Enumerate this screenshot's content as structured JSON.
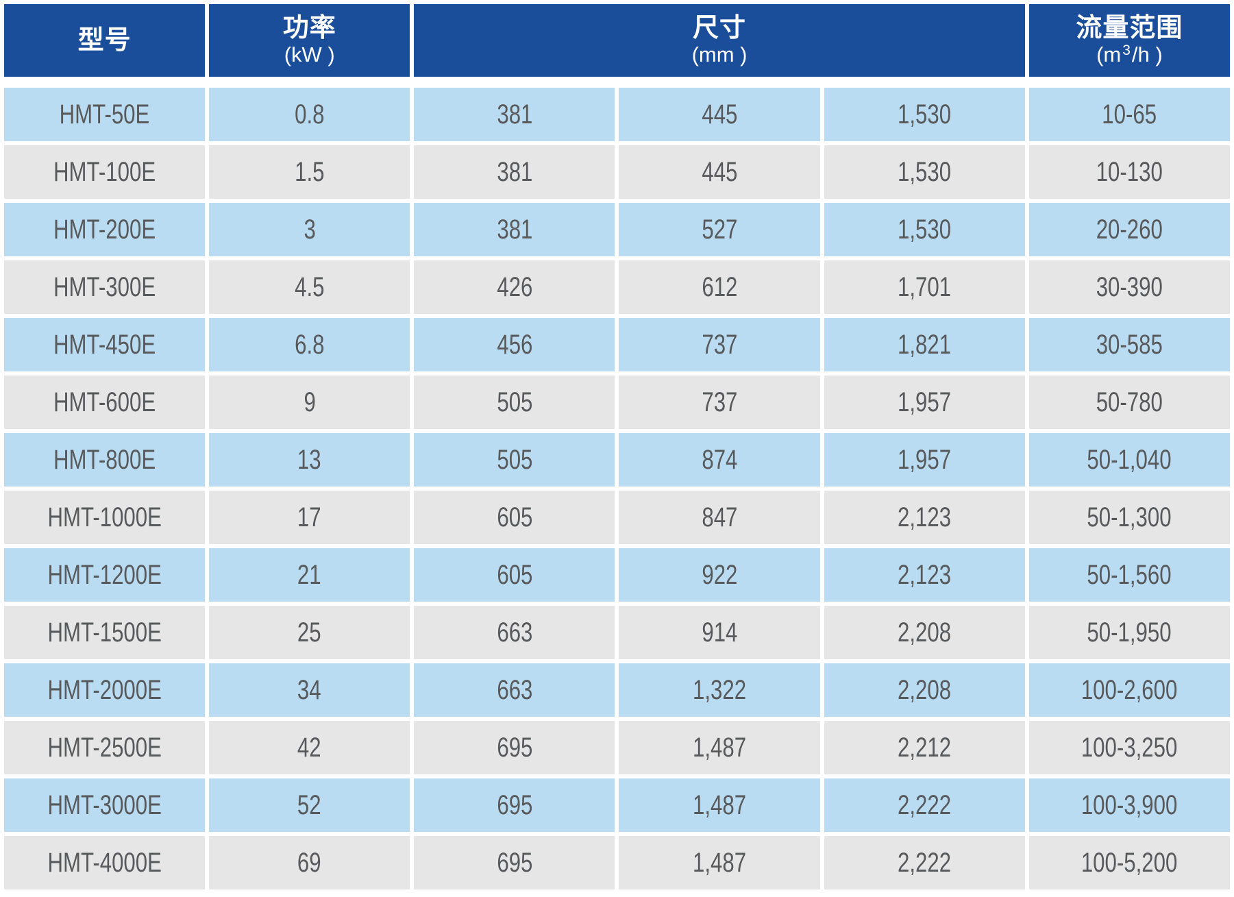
{
  "chart_data": {
    "type": "table",
    "header": {
      "model_label": "型号",
      "power_label": "功率",
      "power_unit": "(kW )",
      "size_label": "尺寸",
      "size_unit": "(mm )",
      "flow_label": "流量范围",
      "flow_unit_prefix": "(m",
      "flow_unit_sup": "3",
      "flow_unit_suffix": "/h )"
    },
    "rows": [
      {
        "model": "HMT-50E",
        "power": "0.8",
        "dim1": "381",
        "dim2": "445",
        "dim3": "1,530",
        "flow": "10-65"
      },
      {
        "model": "HMT-100E",
        "power": "1.5",
        "dim1": "381",
        "dim2": "445",
        "dim3": "1,530",
        "flow": "10-130"
      },
      {
        "model": "HMT-200E",
        "power": "3",
        "dim1": "381",
        "dim2": "527",
        "dim3": "1,530",
        "flow": "20-260"
      },
      {
        "model": "HMT-300E",
        "power": "4.5",
        "dim1": "426",
        "dim2": "612",
        "dim3": "1,701",
        "flow": "30-390"
      },
      {
        "model": "HMT-450E",
        "power": "6.8",
        "dim1": "456",
        "dim2": "737",
        "dim3": "1,821",
        "flow": "30-585"
      },
      {
        "model": "HMT-600E",
        "power": "9",
        "dim1": "505",
        "dim2": "737",
        "dim3": "1,957",
        "flow": "50-780"
      },
      {
        "model": "HMT-800E",
        "power": "13",
        "dim1": "505",
        "dim2": "874",
        "dim3": "1,957",
        "flow": "50-1,040"
      },
      {
        "model": "HMT-1000E",
        "power": "17",
        "dim1": "605",
        "dim2": "847",
        "dim3": "2,123",
        "flow": "50-1,300"
      },
      {
        "model": "HMT-1200E",
        "power": "21",
        "dim1": "605",
        "dim2": "922",
        "dim3": "2,123",
        "flow": "50-1,560"
      },
      {
        "model": "HMT-1500E",
        "power": "25",
        "dim1": "663",
        "dim2": "914",
        "dim3": "2,208",
        "flow": "50-1,950"
      },
      {
        "model": "HMT-2000E",
        "power": "34",
        "dim1": "663",
        "dim2": "1,322",
        "dim3": "2,208",
        "flow": "100-2,600"
      },
      {
        "model": "HMT-2500E",
        "power": "42",
        "dim1": "695",
        "dim2": "1,487",
        "dim3": "2,212",
        "flow": "100-3,250"
      },
      {
        "model": "HMT-3000E",
        "power": "52",
        "dim1": "695",
        "dim2": "1,487",
        "dim3": "2,222",
        "flow": "100-3,900"
      },
      {
        "model": "HMT-4000E",
        "power": "69",
        "dim1": "695",
        "dim2": "1,487",
        "dim3": "2,222",
        "flow": "100-5,200"
      }
    ]
  },
  "colors": {
    "header_bg": "#1A4E9B",
    "row_blue": "#B9DCF2",
    "row_gray": "#E6E6E6",
    "cell_text": "#58595B",
    "header_text": "#FFFFFF"
  }
}
